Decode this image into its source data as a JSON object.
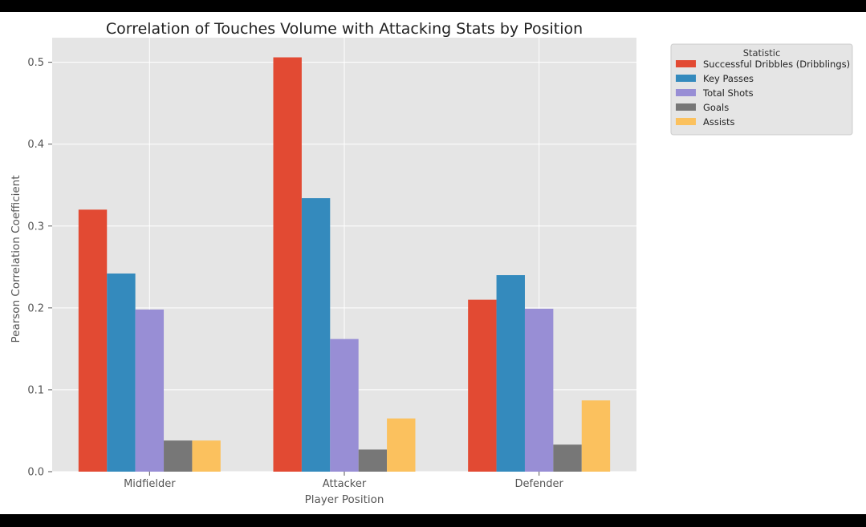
{
  "chart_data": {
    "type": "bar",
    "title": "Correlation of Touches Volume with Attacking Stats by Position",
    "xlabel": "Player Position",
    "ylabel": "Pearson Correlation Coefficient",
    "categories": [
      "Midfielder",
      "Attacker",
      "Defender"
    ],
    "ylim": [
      0,
      0.53
    ],
    "yticks": [
      "0.0",
      "0.1",
      "0.2",
      "0.3",
      "0.4",
      "0.5"
    ],
    "grid": true,
    "legend": {
      "title": "Statistic",
      "placement": "outside-top-right"
    },
    "series": [
      {
        "name": "Successful Dribbles (Dribblings)",
        "color": "#E24A33",
        "values": [
          0.32,
          0.506,
          0.21
        ]
      },
      {
        "name": "Key Passes",
        "color": "#348ABD",
        "values": [
          0.242,
          0.334,
          0.24
        ]
      },
      {
        "name": "Total Shots",
        "color": "#988ED5",
        "values": [
          0.198,
          0.162,
          0.199
        ]
      },
      {
        "name": "Goals",
        "color": "#777777",
        "values": [
          0.038,
          0.027,
          0.033
        ]
      },
      {
        "name": "Assists",
        "color": "#FBC15E",
        "values": [
          0.038,
          0.065,
          0.087
        ]
      }
    ]
  }
}
